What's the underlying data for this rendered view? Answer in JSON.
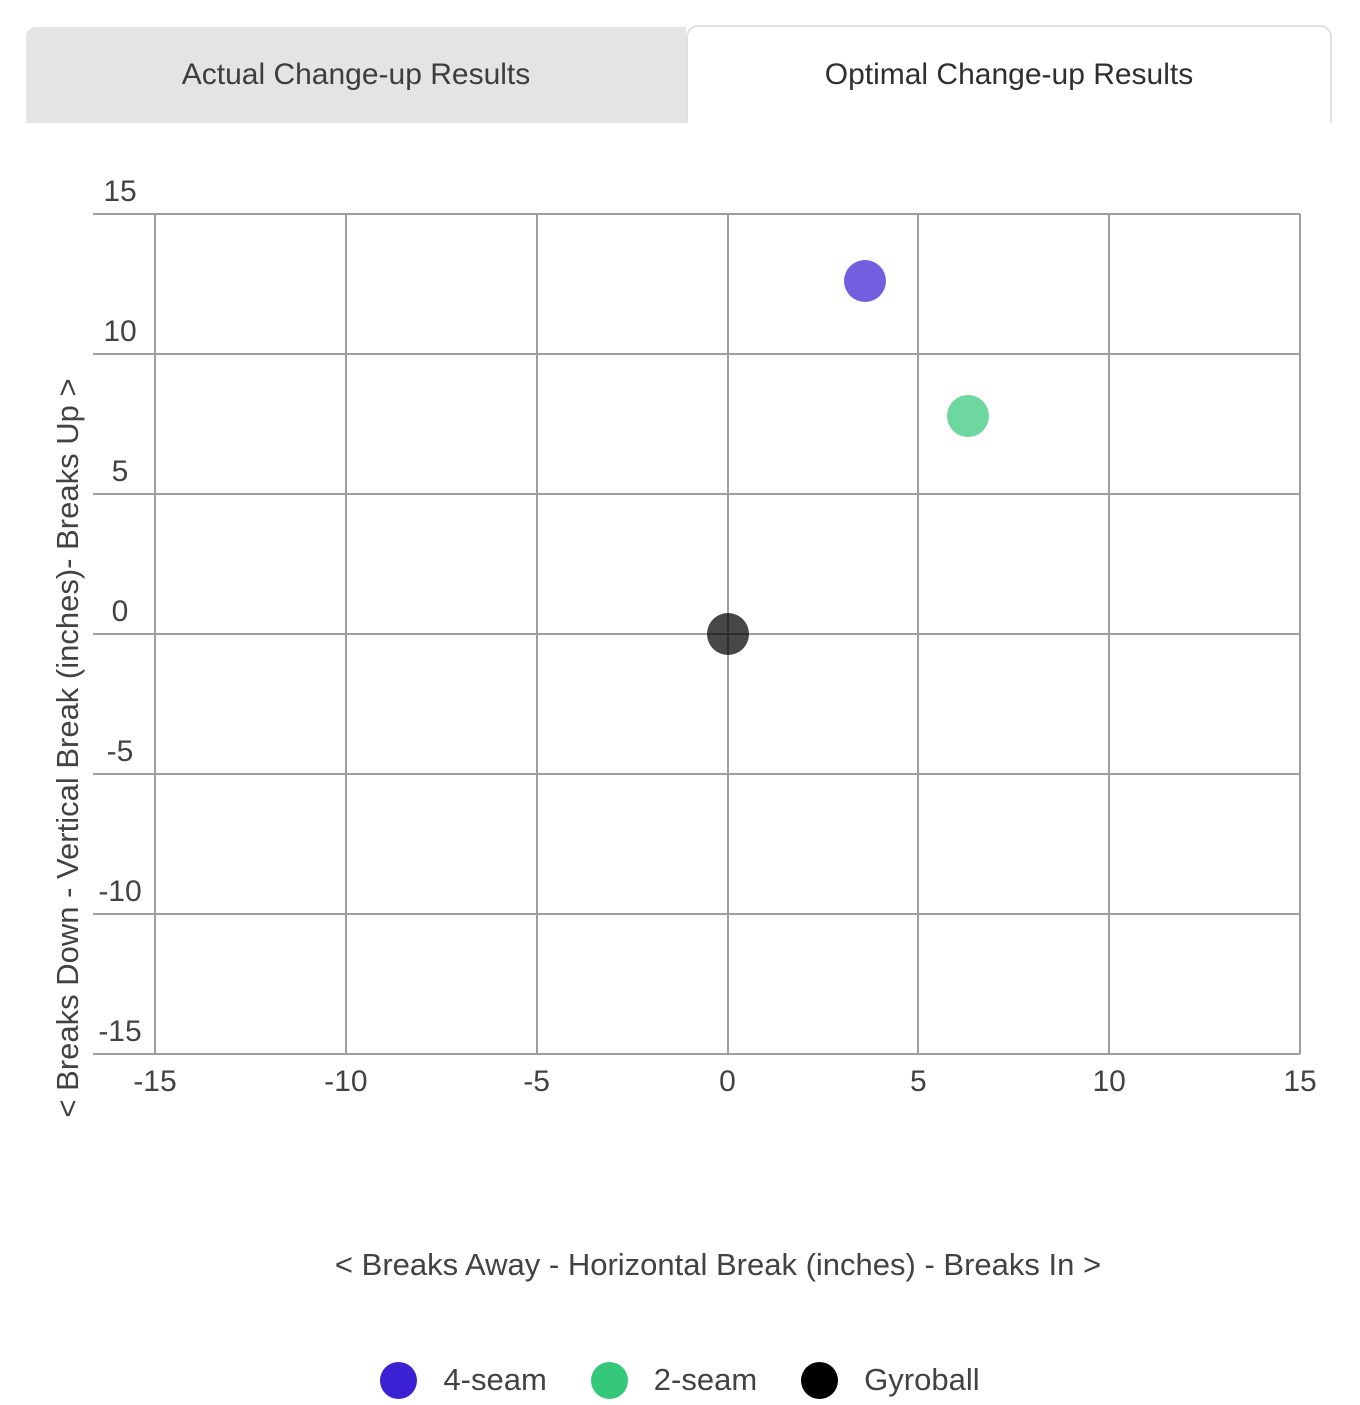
{
  "tabs": [
    {
      "label": "Actual Change-up Results",
      "active": false
    },
    {
      "label": "Optimal Change-up Results",
      "active": true
    }
  ],
  "chart_data": {
    "type": "scatter",
    "title": "Optimal Change-up Results",
    "xlabel": "< Breaks Away - Horizontal Break (inches) - Breaks In >",
    "ylabel": "< Breaks Down - Vertical Break (inches)- Breaks Up >",
    "xlim": [
      -15,
      15
    ],
    "ylim": [
      -15,
      15
    ],
    "xticks": [
      -15,
      -10,
      -5,
      0,
      5,
      10,
      15
    ],
    "yticks": [
      -15,
      -10,
      -5,
      0,
      5,
      10,
      15
    ],
    "grid": true,
    "grid_color": "#9e9e9e",
    "legend_position": "bottom",
    "series": [
      {
        "name": "4-seam",
        "color": "#3b21d4",
        "point_color": "rgba(59,33,212,0.72)",
        "points": [
          {
            "x": 3.6,
            "y": 12.6
          }
        ]
      },
      {
        "name": "2-seam",
        "color": "#35c87a",
        "point_color": "rgba(53,200,122,0.72)",
        "points": [
          {
            "x": 6.3,
            "y": 7.8
          }
        ]
      },
      {
        "name": "Gyroball",
        "color": "#000000",
        "point_color": "rgba(0,0,0,0.72)",
        "points": [
          {
            "x": 0,
            "y": 0
          }
        ]
      }
    ]
  }
}
